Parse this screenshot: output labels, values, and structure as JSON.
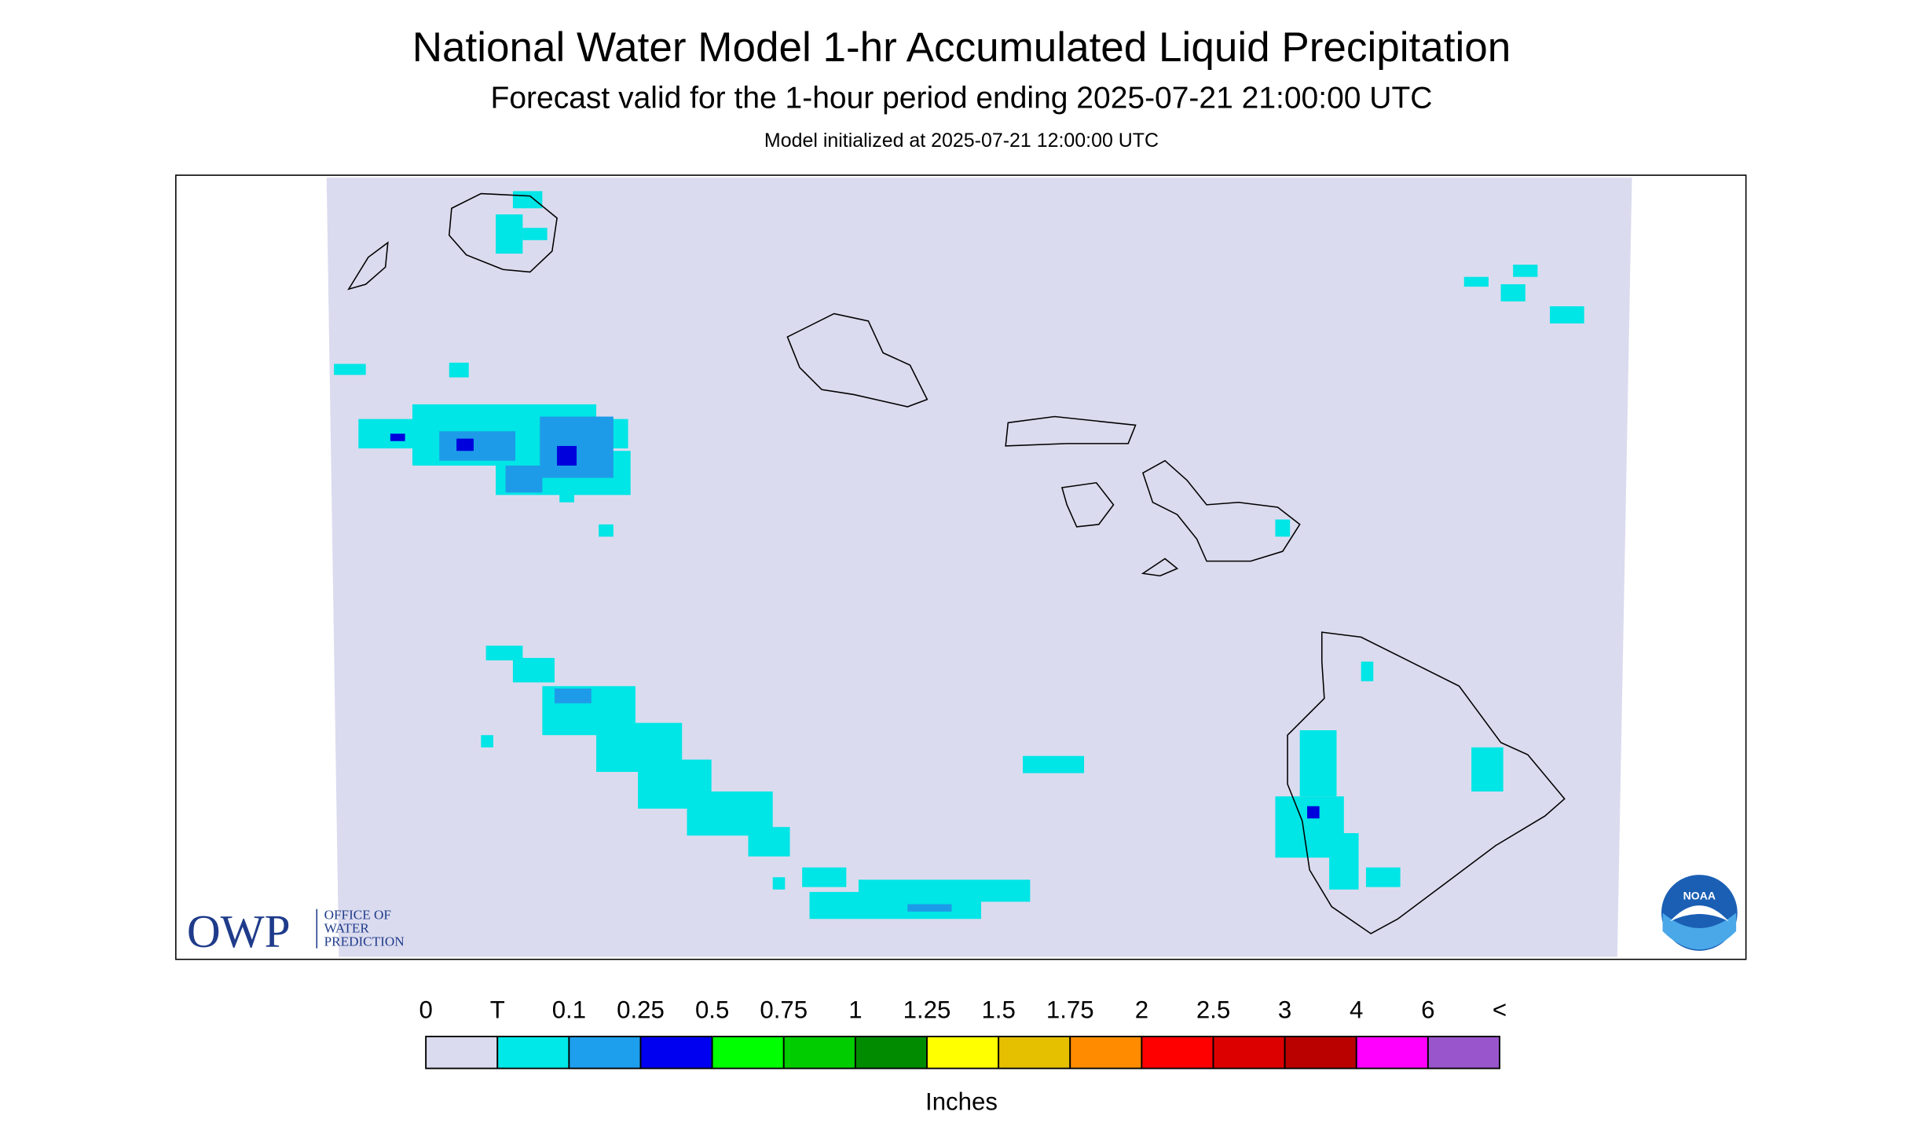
{
  "header": {
    "title": "National Water Model 1-hr Accumulated Liquid Precipitation",
    "subtitle": "Forecast valid for the 1-hour period ending 2025-07-21 21:00:00 UTC",
    "init": "Model initialized at 2025-07-21 12:00:00 UTC"
  },
  "logo": {
    "owp": "OWP",
    "owp_name": [
      "OFFICE OF",
      "WATER",
      "PREDICTION"
    ],
    "noaa": "NOAA"
  },
  "legend": {
    "labels": [
      "0",
      "T",
      "0.1",
      "0.25",
      "0.5",
      "0.75",
      "1",
      "1.25",
      "1.5",
      "1.75",
      "2",
      "2.5",
      "3",
      "4",
      "6",
      "<"
    ],
    "colors": [
      "#dbdbef",
      "#00e8e8",
      "#1e9fee",
      "#0000f0",
      "#00ff00",
      "#00cc00",
      "#008b00",
      "#ffff00",
      "#e5c000",
      "#ff8c00",
      "#ff0000",
      "#dd0000",
      "#bb0000",
      "#ff00ff",
      "#9955cc"
    ],
    "unit": "Inches"
  }
}
